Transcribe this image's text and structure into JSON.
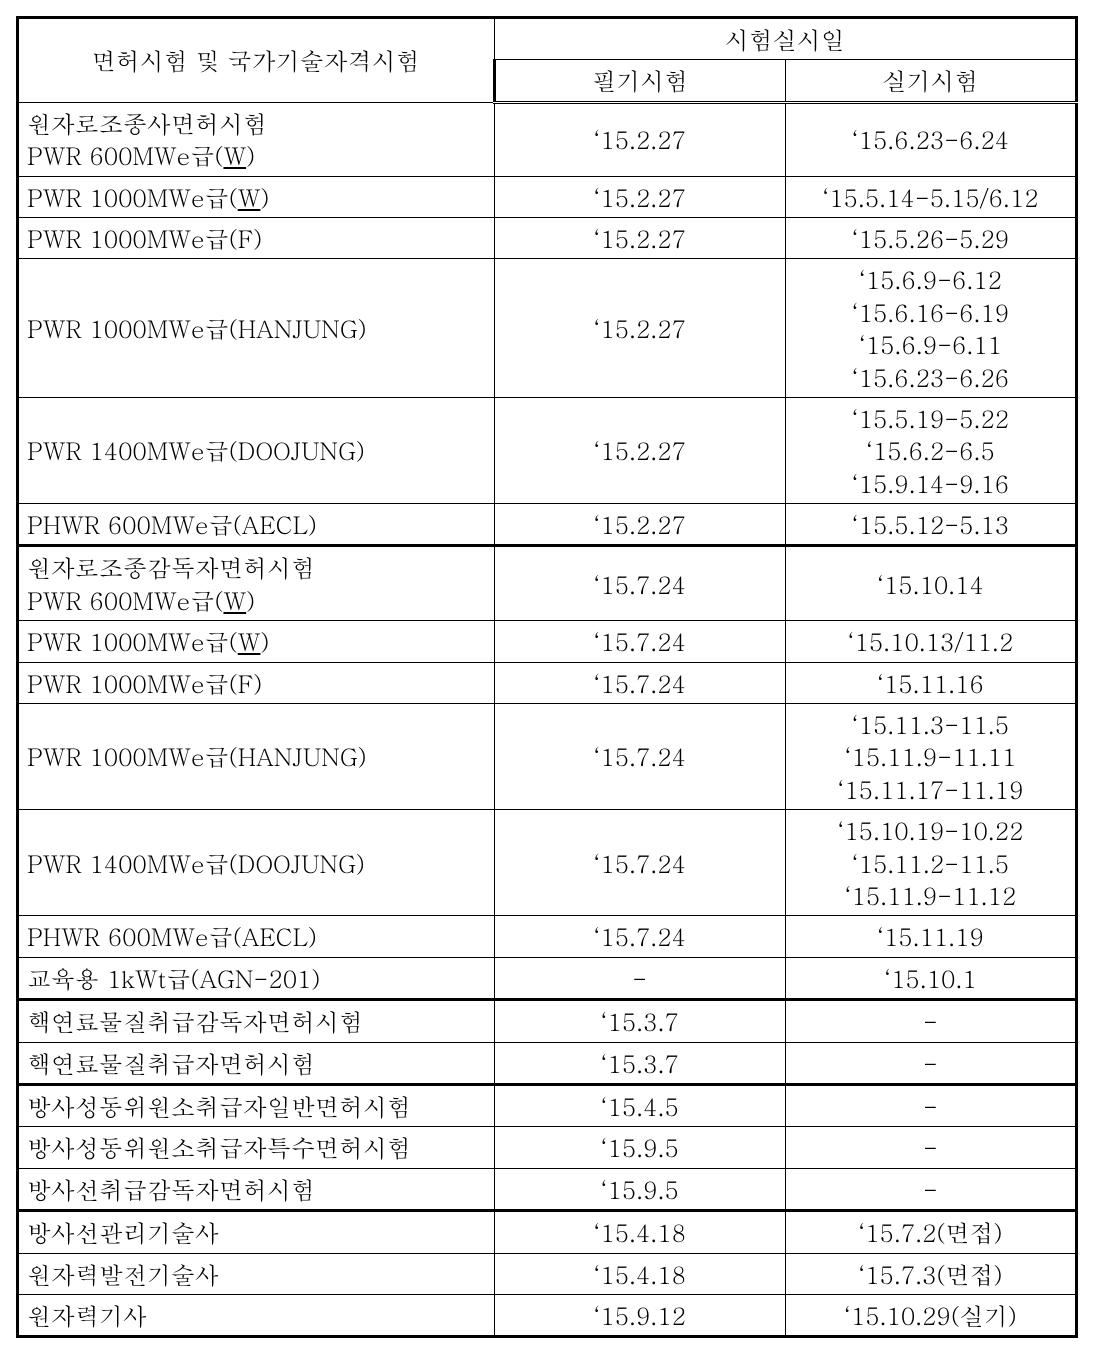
{
  "header": {
    "main": "면허시험 및 국가기술자격시험",
    "top": "시험실시일",
    "written": "필기시험",
    "practical": "실기시험"
  },
  "groups": [
    {
      "rows": [
        {
          "label_prefix": "원자로조종사면허시험\n  PWR 600MWe급(",
          "label_u": "W",
          "label_suffix": ")",
          "col1": "‘15.2.27",
          "col2": "‘15.6.23-6.24"
        },
        {
          "label_prefix": "  PWR 1000MWe급(",
          "label_u": "W",
          "label_suffix": ")",
          "col1": "‘15.2.27",
          "col2": "‘15.5.14-5.15/6.12"
        },
        {
          "label_prefix": "  PWR 1000MWe급(F)",
          "label_u": "",
          "label_suffix": "",
          "col1": "‘15.2.27",
          "col2": "‘15.5.26-5.29"
        },
        {
          "label_prefix": "  PWR 1000MWe급(HANJUNG)",
          "label_u": "",
          "label_suffix": "",
          "col1": "‘15.2.27",
          "col2": "‘15.6.9-6.12\n‘15.6.16-6.19\n‘15.6.9-6.11\n‘15.6.23-6.26"
        },
        {
          "label_prefix": "  PWR 1400MWe급(DOOJUNG)",
          "label_u": "",
          "label_suffix": "",
          "col1": "‘15.2.27",
          "col2": "‘15.5.19-5.22\n‘15.6.2-6.5\n‘15.9.14-9.16"
        },
        {
          "label_prefix": "  PHWR 600MWe급(AECL)",
          "label_u": "",
          "label_suffix": "",
          "col1": "‘15.2.27",
          "col2": "‘15.5.12-5.13"
        }
      ]
    },
    {
      "rows": [
        {
          "label_prefix": "원자로조종감독자면허시험\n  PWR 600MWe급(",
          "label_u": "W",
          "label_suffix": ")",
          "col1": "‘15.7.24",
          "col2": "‘15.10.14"
        },
        {
          "label_prefix": "  PWR 1000MWe급(",
          "label_u": "W",
          "label_suffix": ")",
          "col1": "‘15.7.24",
          "col2": "‘15.10.13/11.2"
        },
        {
          "label_prefix": "  PWR 1000MWe급(F)",
          "label_u": "",
          "label_suffix": "",
          "col1": "‘15.7.24",
          "col2": "‘15.11.16"
        },
        {
          "label_prefix": "  PWR 1000MWe급(HANJUNG)",
          "label_u": "",
          "label_suffix": "",
          "col1": "‘15.7.24",
          "col2": "‘15.11.3-11.5\n‘15.11.9-11.11\n‘15.11.17-11.19"
        },
        {
          "label_prefix": "  PWR 1400MWe급(DOOJUNG)",
          "label_u": "",
          "label_suffix": "",
          "col1": "‘15.7.24",
          "col2": "‘15.10.19-10.22\n‘15.11.2-11.5\n‘15.11.9-11.12"
        },
        {
          "label_prefix": "  PHWR 600MWe급(AECL)",
          "label_u": "",
          "label_suffix": "",
          "col1": "‘15.7.24",
          "col2": "‘15.11.19"
        },
        {
          "label_prefix": "  교육용 1kWt급(AGN-201)",
          "label_u": "",
          "label_suffix": "",
          "col1": "-",
          "col2": "‘15.10.1"
        }
      ]
    },
    {
      "rows": [
        {
          "label_prefix": "핵연료물질취급감독자면허시험",
          "label_u": "",
          "label_suffix": "",
          "col1": "‘15.3.7",
          "col2": "-"
        },
        {
          "label_prefix": "핵연료물질취급자면허시험",
          "label_u": "",
          "label_suffix": "",
          "col1": "‘15.3.7",
          "col2": "-"
        }
      ]
    },
    {
      "rows": [
        {
          "label_prefix": "방사성동위원소취급자일반면허시험",
          "label_u": "",
          "label_suffix": "",
          "col1": "‘15.4.5",
          "col2": "-"
        },
        {
          "label_prefix": "방사성동위원소취급자특수면허시험",
          "label_u": "",
          "label_suffix": "",
          "col1": "‘15.9.5",
          "col2": "-"
        },
        {
          "label_prefix": "방사선취급감독자면허시험",
          "label_u": "",
          "label_suffix": "",
          "col1": "‘15.9.5",
          "col2": "-"
        }
      ]
    },
    {
      "rows": [
        {
          "label_prefix": "방사선관리기술사",
          "label_u": "",
          "label_suffix": "",
          "col1": "‘15.4.18",
          "col2": "‘15.7.2(면접)"
        },
        {
          "label_prefix": "원자력발전기술사",
          "label_u": "",
          "label_suffix": "",
          "col1": "‘15.4.18",
          "col2": "‘15.7.3(면접)"
        },
        {
          "label_prefix": "원자력기사",
          "label_u": "",
          "label_suffix": "",
          "col1": "‘15.9.12",
          "col2": "‘15.10.29(실기)"
        }
      ]
    }
  ]
}
